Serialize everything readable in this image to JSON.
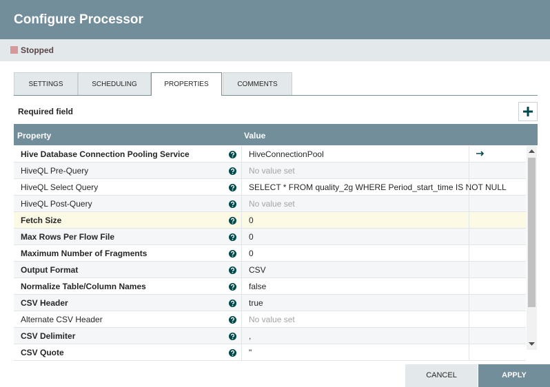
{
  "header": {
    "title": "Configure Processor"
  },
  "status": "Stopped",
  "tabs": [
    "SETTINGS",
    "SCHEDULING",
    "PROPERTIES",
    "COMMENTS"
  ],
  "required_label": "Required field",
  "table": {
    "headers": [
      "Property",
      "Value"
    ],
    "rows": [
      {
        "name": "Hive Database Connection Pooling Service",
        "value": "HiveConnectionPool",
        "required": true
      },
      {
        "name": "HiveQL Pre-Query",
        "value": "No value set",
        "required": false
      },
      {
        "name": "HiveQL Select Query",
        "value": "SELECT * FROM quality_2g WHERE Period_start_time IS NOT NULL",
        "required": false
      },
      {
        "name": "HiveQL Post-Query",
        "value": "No value set",
        "required": false
      },
      {
        "name": "Fetch Size",
        "value": "0",
        "required": true
      },
      {
        "name": "Max Rows Per Flow File",
        "value": "0",
        "required": true
      },
      {
        "name": "Maximum Number of Fragments",
        "value": "0",
        "required": true
      },
      {
        "name": "Output Format",
        "value": "CSV",
        "required": true
      },
      {
        "name": "Normalize Table/Column Names",
        "value": "false",
        "required": true
      },
      {
        "name": "CSV Header",
        "value": "true",
        "required": true
      },
      {
        "name": "Alternate CSV Header",
        "value": "No value set",
        "required": false
      },
      {
        "name": "CSV Delimiter",
        "value": ",",
        "required": true
      },
      {
        "name": "CSV Quote",
        "value": "\"",
        "required": true
      }
    ]
  },
  "buttons": {
    "cancel": "CANCEL",
    "apply": "APPLY"
  }
}
